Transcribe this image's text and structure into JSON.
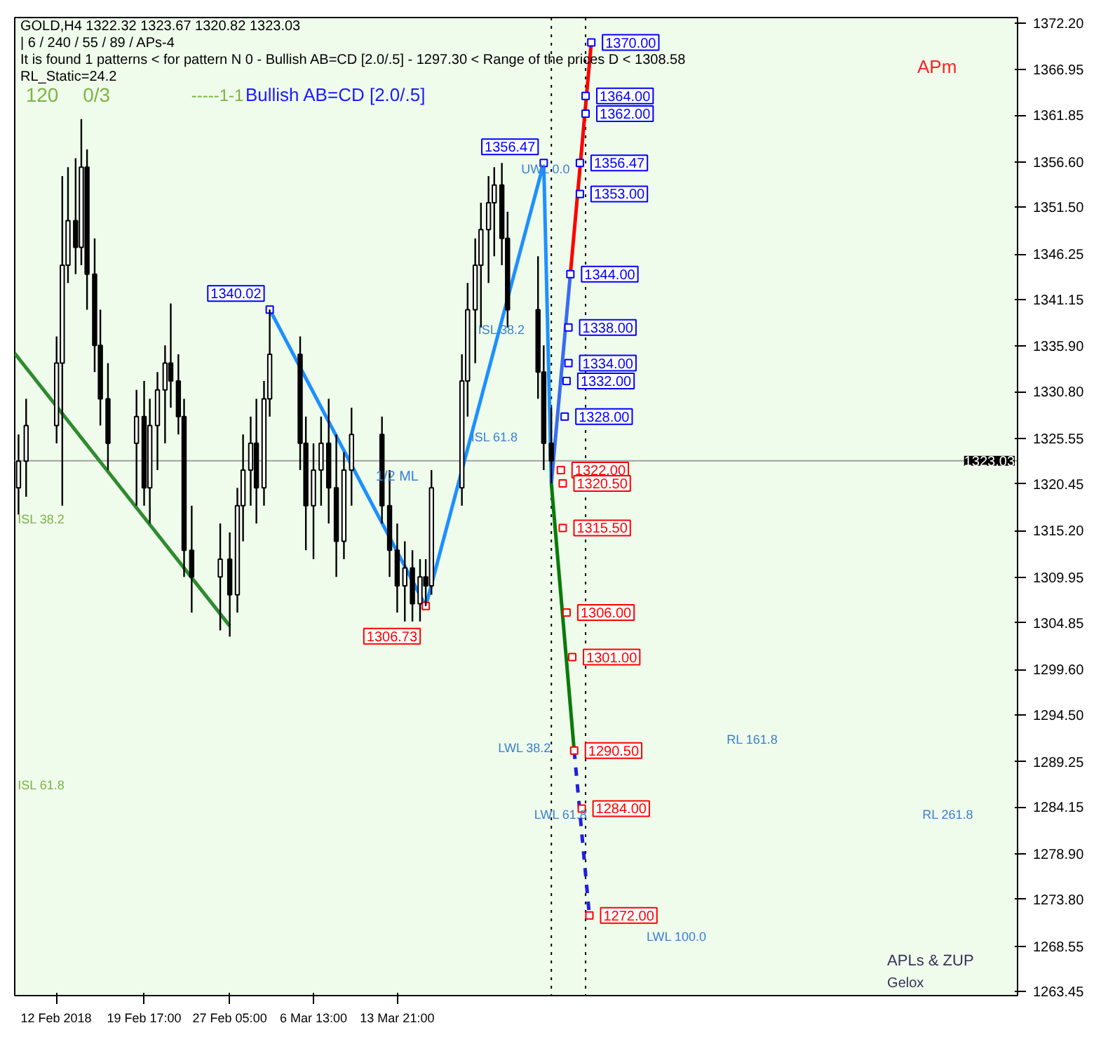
{
  "chart_data": {
    "type": "candlestick",
    "title": "GOLD,H4  1322.32 1323.67 1320.82 1323.03",
    "subtitle": "| 6 / 240 / 55 / 89 / APs-4",
    "x": [
      "2018-02-08T17:00",
      "2018-02-09T09:00",
      "2018-02-12T01:00",
      "2018-02-12T13:00",
      "2018-02-13T01:00",
      "2018-02-13T17:00",
      "2018-02-14T05:00",
      "2018-02-14T17:00",
      "2018-02-15T09:00",
      "2018-02-15T21:00",
      "2018-02-16T13:00",
      "2018-02-19T01:00",
      "2018-02-19T17:00",
      "2018-02-20T05:00",
      "2018-02-20T21:00",
      "2018-02-21T13:00",
      "2018-02-22T01:00",
      "2018-02-22T17:00",
      "2018-02-23T05:00",
      "2018-02-23T21:00",
      "2018-02-26T09:00",
      "2018-02-27T05:00",
      "2018-02-27T21:00",
      "2018-02-28T09:00",
      "2018-03-01T01:00",
      "2018-03-01T13:00",
      "2018-03-02T05:00",
      "2018-03-02T17:00",
      "2018-03-05T09:00",
      "2018-03-05T21:00",
      "2018-03-06T13:00",
      "2018-03-07T05:00",
      "2018-03-07T21:00",
      "2018-03-08T13:00",
      "2018-03-09T05:00",
      "2018-03-09T21:00",
      "2018-03-12T13:00",
      "2018-03-13T05:00",
      "2018-03-13T21:00",
      "2018-03-14T13:00",
      "2018-03-15T05:00",
      "2018-03-15T21:00",
      "2018-03-16T09:00",
      "2018-03-16T21:00",
      "2018-03-19T13:00",
      "2018-03-20T01:00",
      "2018-03-20T17:00",
      "2018-03-21T05:00",
      "2018-03-21T21:00",
      "2018-03-22T09:00",
      "2018-03-23T01:00",
      "2018-03-23T13:00",
      "2018-03-26T05:00",
      "2018-03-26T17:00",
      "2018-03-27T09:00"
    ],
    "ohlc": [
      [
        1320,
        1326,
        1317,
        1323
      ],
      [
        1323,
        1330,
        1319,
        1327
      ],
      [
        1327,
        1337,
        1325,
        1334
      ],
      [
        1334,
        1355,
        1318,
        1345
      ],
      [
        1345,
        1356,
        1343,
        1350
      ],
      [
        1350,
        1357,
        1344,
        1347
      ],
      [
        1347,
        1361.4,
        1345,
        1356
      ],
      [
        1356,
        1358,
        1340,
        1344
      ],
      [
        1344,
        1348,
        1333,
        1336
      ],
      [
        1336,
        1340,
        1327,
        1330
      ],
      [
        1330,
        1334,
        1322,
        1325
      ],
      [
        1325,
        1331,
        1318,
        1328
      ],
      [
        1328,
        1332,
        1318,
        1320
      ],
      [
        1320,
        1330,
        1316,
        1327
      ],
      [
        1327,
        1333,
        1322,
        1331
      ],
      [
        1331,
        1336,
        1325,
        1334
      ],
      [
        1334,
        1340.7,
        1329,
        1332
      ],
      [
        1332,
        1335,
        1326,
        1328
      ],
      [
        1328,
        1330,
        1310,
        1313
      ],
      [
        1313,
        1318,
        1306,
        1310
      ],
      [
        1310,
        1316,
        1304,
        1312
      ],
      [
        1312,
        1315,
        1303.3,
        1308
      ],
      [
        1308,
        1320,
        1306,
        1318
      ],
      [
        1318,
        1326,
        1314,
        1322
      ],
      [
        1322,
        1328,
        1318,
        1325
      ],
      [
        1325,
        1330,
        1316,
        1320
      ],
      [
        1320,
        1332,
        1318,
        1330
      ],
      [
        1330,
        1340.02,
        1328,
        1335
      ],
      [
        1335,
        1337,
        1322,
        1325
      ],
      [
        1325,
        1328,
        1313,
        1318
      ],
      [
        1318,
        1325,
        1312,
        1322
      ],
      [
        1322,
        1328,
        1318,
        1325
      ],
      [
        1325,
        1330,
        1316,
        1320
      ],
      [
        1320,
        1326,
        1310,
        1314
      ],
      [
        1314,
        1324,
        1312,
        1322
      ],
      [
        1322,
        1329,
        1318,
        1326
      ],
      [
        1326,
        1328,
        1316,
        1318
      ],
      [
        1318,
        1322,
        1310,
        1313
      ],
      [
        1313,
        1316,
        1306,
        1309
      ],
      [
        1309,
        1314,
        1305,
        1311
      ],
      [
        1311,
        1313,
        1305,
        1307
      ],
      [
        1307,
        1312,
        1305,
        1310
      ],
      [
        1310,
        1312,
        1306.73,
        1309
      ],
      [
        1309,
        1322,
        1308,
        1320
      ],
      [
        1320,
        1335,
        1318,
        1332
      ],
      [
        1332,
        1343,
        1328,
        1340
      ],
      [
        1340,
        1348,
        1334,
        1345
      ],
      [
        1345,
        1352,
        1338,
        1349
      ],
      [
        1349,
        1355,
        1343,
        1352
      ],
      [
        1352,
        1356,
        1346,
        1354
      ],
      [
        1354,
        1356.47,
        1345,
        1348
      ],
      [
        1348,
        1351,
        1338,
        1340
      ],
      [
        1340,
        1346,
        1330,
        1333
      ],
      [
        1333,
        1336,
        1322,
        1325
      ],
      [
        1325,
        1329,
        1320.5,
        1323.03
      ]
    ],
    "series": [
      {
        "type": "line",
        "color": "#1e90ff",
        "x": [
          "2018-03-02T17:00",
          "2018-03-16T09:00",
          "2018-03-26T17:00",
          "2018-03-27T09:00"
        ],
        "values": [
          1340.02,
          1306.73,
          1356.47,
          1320.5
        ]
      },
      {
        "type": "line",
        "color": "#2e8b2e",
        "x": [
          "2018-02-08T09:00",
          "2018-02-27T05:00"
        ],
        "values": [
          1335.1,
          1304.5
        ]
      },
      {
        "type": "line",
        "color": "#3a6cf0",
        "x": [
          "2018-03-27T09:00",
          "2018-03-29T01:00"
        ],
        "values": [
          1320.5,
          1344
        ]
      },
      {
        "type": "line",
        "color": "#ff0000",
        "x": [
          "2018-03-29T01:00",
          "2018-03-30T21:00"
        ],
        "values": [
          1344,
          1370
        ]
      },
      {
        "type": "line",
        "color": "#0a7a0a",
        "x": [
          "2018-03-27T09:00",
          "2018-03-29T09:00"
        ],
        "values": [
          1320.5,
          1290.5
        ]
      },
      {
        "type": "line",
        "color": "#2020e0",
        "line_style": "dashed",
        "x": [
          "2018-03-29T09:00",
          "2018-03-30T17:00"
        ],
        "values": [
          1290.5,
          1272
        ]
      },
      {
        "type": "scatter",
        "color": "#0000ff",
        "x": [
          "2018-03-30T21:00",
          "2018-03-30T09:00",
          "2018-03-30T09:00",
          "2018-03-29T21:00",
          "2018-03-29T21:00",
          "2018-03-29T01:00",
          "2018-03-28T21:00",
          "2018-03-28T21:00",
          "2018-03-28T17:00",
          "2018-03-28T13:00",
          "2018-03-26T17:00",
          "2018-03-02T17:00"
        ],
        "values": [
          1370,
          1364,
          1362,
          1356.47,
          1353,
          1344,
          1338,
          1334,
          1332,
          1328,
          1356.47,
          1340.02
        ],
        "marker": "square",
        "value_labels": [
          "1370.00",
          "1364.00",
          "1362.00",
          "1356.47",
          "1353.00",
          "1344.00",
          "1338.00",
          "1334.00",
          "1332.00",
          "1328.00",
          "1356.47",
          "1340.02"
        ]
      },
      {
        "type": "scatter",
        "color": "#ff0000",
        "x": [
          "2018-03-28T05:00",
          "2018-03-28T09:00",
          "2018-03-28T09:00",
          "2018-03-28T17:00",
          "2018-03-29T05:00",
          "2018-03-29T09:00",
          "2018-03-30T01:00",
          "2018-03-30T17:00",
          "2018-03-16T09:00"
        ],
        "values": [
          1322,
          1320.5,
          1315.5,
          1306,
          1301,
          1290.5,
          1284,
          1272,
          1306.73
        ],
        "marker": "square",
        "value_labels": [
          "1322.00",
          "1320.50",
          "1315.50",
          "1306.00",
          "1301.00",
          "1290.50",
          "1284.00",
          "1272.00",
          "1306.73"
        ]
      }
    ],
    "ref_lines": [
      {
        "axis": "x",
        "value": "2018-03-27T09:00",
        "color": "#000000",
        "line_style": "dotted"
      },
      {
        "axis": "x",
        "value": "2018-03-30T09:00",
        "color": "#000000",
        "line_style": "dotted"
      },
      {
        "axis": "y",
        "value": 1323.03,
        "label": "1323.03",
        "color": "#a0a0a0"
      }
    ],
    "annotations": [
      "It is found 1 patterns  <  for pattern N 0 - Bullish AB=CD [2.0/.5] - 1297.30 < Range of the prices D < 1308.58",
      "RL_Static=24.2",
      "120",
      "0/3",
      "-----1-1",
      "Bullish AB=CD [2.0/.5]",
      "APm",
      "APLs & ZUP",
      "Gelox",
      "ISL 38.2",
      "ISL 61.8",
      "ISL 38.2",
      "ISL 61.8",
      "1/2 ML",
      "UWL 0.0",
      "LWL 38.2",
      "LWL 61.8",
      "LWL 100.0",
      "RL 161.8",
      "RL 261.8"
    ],
    "xlim": [
      "2018-02-08T09:00",
      "2018-05-07T05:00"
    ],
    "ylim": [
      1263.0,
      1372.8
    ],
    "xticks": [
      {
        "value": "2018-02-12",
        "label": "12 Feb 2018"
      },
      {
        "value": "2018-02-19T17:00",
        "label": "19 Feb 17:00"
      },
      {
        "value": "2018-02-27T05:00",
        "label": "27 Feb 05:00"
      },
      {
        "value": "2018-03-06T13:00",
        "label": "6 Mar 13:00"
      },
      {
        "value": "2018-03-13T21:00",
        "label": "13 Mar 21:00"
      }
    ],
    "yticks": [
      {
        "value": 1372.2,
        "label": "1372.20"
      },
      {
        "value": 1366.95,
        "label": "1366.95"
      },
      {
        "value": 1361.85,
        "label": "1361.85"
      },
      {
        "value": 1356.6,
        "label": "1356.60"
      },
      {
        "value": 1351.5,
        "label": "1351.50"
      },
      {
        "value": 1346.25,
        "label": "1346.25"
      },
      {
        "value": 1341.15,
        "label": "1341.15"
      },
      {
        "value": 1335.9,
        "label": "1335.90"
      },
      {
        "value": 1330.8,
        "label": "1330.80"
      },
      {
        "value": 1325.55,
        "label": "1325.55"
      },
      {
        "value": 1320.45,
        "label": "1320.45"
      },
      {
        "value": 1315.2,
        "label": "1315.20"
      },
      {
        "value": 1309.95,
        "label": "1309.95"
      },
      {
        "value": 1304.85,
        "label": "1304.85"
      },
      {
        "value": 1299.6,
        "label": "1299.60"
      },
      {
        "value": 1294.5,
        "label": "1294.50"
      },
      {
        "value": 1289.25,
        "label": "1289.25"
      },
      {
        "value": 1284.15,
        "label": "1284.15"
      },
      {
        "value": 1278.9,
        "label": "1278.90"
      },
      {
        "value": 1273.8,
        "label": "1273.80"
      },
      {
        "value": 1268.55,
        "label": "1268.55"
      },
      {
        "value": 1263.45,
        "label": "1263.45"
      }
    ]
  }
}
